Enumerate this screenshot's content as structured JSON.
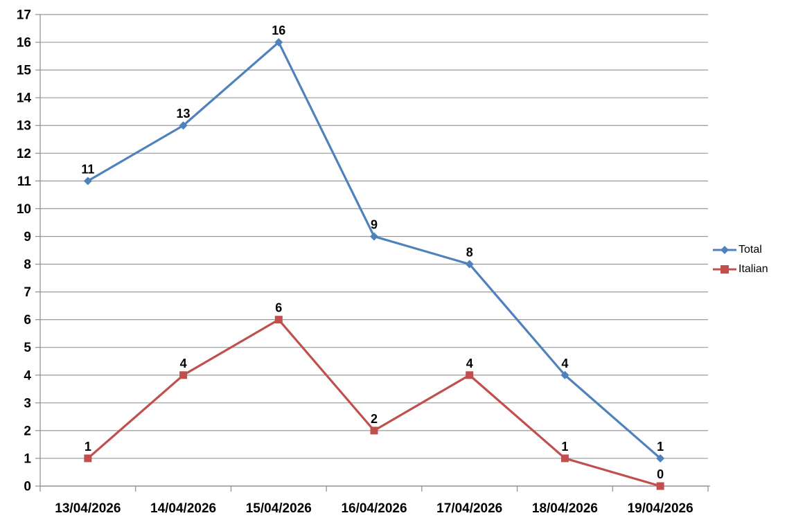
{
  "chart_data": {
    "type": "line",
    "title": "",
    "xlabel": "",
    "ylabel": "",
    "categories": [
      "13/04/2026",
      "14/04/2026",
      "15/04/2026",
      "16/04/2026",
      "17/04/2026",
      "18/04/2026",
      "19/04/2026"
    ],
    "series": [
      {
        "name": "Total",
        "color": "#4F81BD",
        "marker": "diamond",
        "values": [
          11,
          13,
          16,
          9,
          8,
          4,
          1
        ]
      },
      {
        "name": "Italian",
        "color": "#C0504D",
        "marker": "square",
        "values": [
          1,
          4,
          6,
          2,
          4,
          1,
          0
        ]
      }
    ],
    "ylim": [
      0,
      17
    ],
    "y_tick_step": 1,
    "grid": "horizontal",
    "legend_position": "right",
    "data_labels": "above"
  },
  "styles": {
    "background": "#FFFFFF",
    "grid_color": "#999999",
    "axis_color": "#8C8C8C",
    "tick_label_color": "#000000",
    "data_label_color": "#000000",
    "legend_text_color": "#000000"
  }
}
